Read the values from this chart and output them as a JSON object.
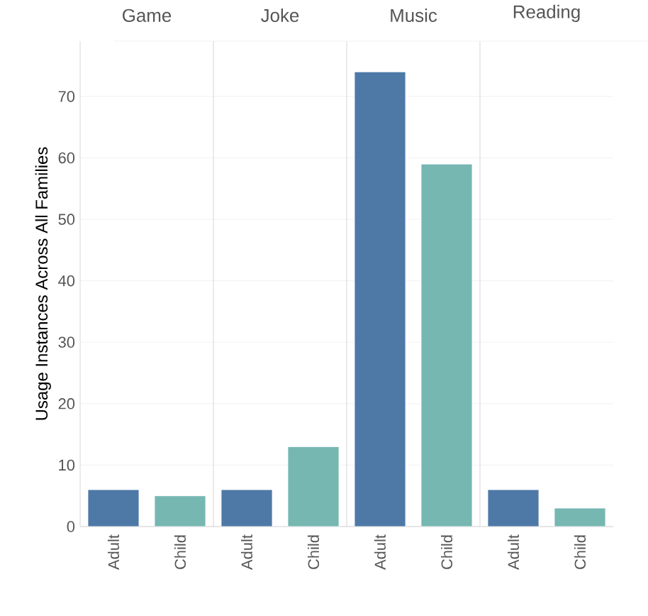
{
  "chart_data": [
    {
      "type": "bar",
      "title": "Game",
      "ylabel": "Usage Instances Across All Families",
      "categories": [
        "Adult",
        "Child"
      ],
      "values": [
        6,
        5
      ],
      "colors": [
        "#4e79a7",
        "#76b7b2"
      ],
      "ylim": [
        0,
        79
      ],
      "yticks": [
        0,
        10,
        20,
        30,
        40,
        50,
        60,
        70
      ],
      "grid": "y"
    },
    {
      "type": "bar",
      "title": "Joke",
      "categories": [
        "Adult",
        "Child"
      ],
      "values": [
        6,
        13
      ],
      "colors": [
        "#4e79a7",
        "#76b7b2"
      ],
      "ylim": [
        0,
        79
      ],
      "yticks": [
        0,
        10,
        20,
        30,
        40,
        50,
        60,
        70
      ],
      "grid": "y",
      "tick_labels": "x"
    },
    {
      "type": "bar",
      "title": "Music",
      "categories": [
        "Adult",
        "Child"
      ],
      "values": [
        74,
        59
      ],
      "colors": [
        "#4e79a7",
        "#76b7b2"
      ],
      "ylim": [
        0,
        79
      ],
      "yticks": [
        0,
        10,
        20,
        30,
        40,
        50,
        60,
        70
      ],
      "grid": "y",
      "tick_labels": "x"
    },
    {
      "type": "bar",
      "title": "Reading",
      "categories": [
        "Adult",
        "Child"
      ],
      "values": [
        6,
        3
      ],
      "colors": [
        "#4e79a7",
        "#76b7b2"
      ],
      "ylim": [
        0,
        79
      ],
      "yticks": [
        0,
        10,
        20,
        30,
        40,
        50,
        60,
        70
      ],
      "grid": "y",
      "tick_labels": "x"
    }
  ]
}
